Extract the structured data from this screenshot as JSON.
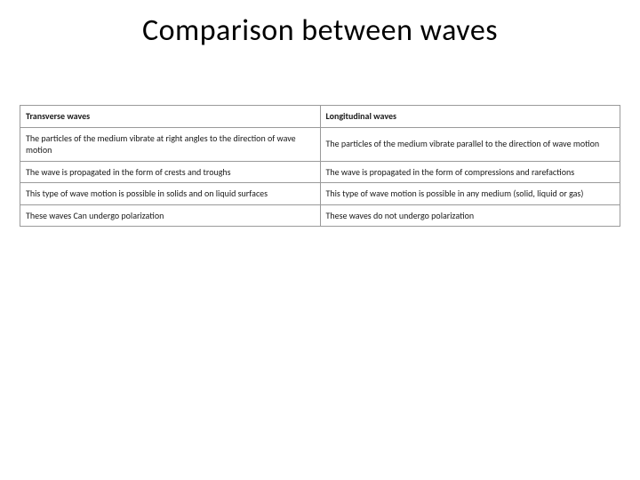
{
  "title": "Comparison between waves",
  "table": {
    "columns": [
      "Transverse waves",
      "Longitudinal waves"
    ],
    "rows": [
      [
        "The particles of the medium vibrate at right angles to the direction of wave motion",
        "The particles of the medium vibrate parallel to the direction of wave motion"
      ],
      [
        "The wave is propagated in the form of crests and troughs",
        "The wave is propagated in the form of compressions and rarefactions"
      ],
      [
        "This type of wave motion is possible in solids and on liquid surfaces",
        "This type of wave motion is possible in any medium (solid, liquid or gas)"
      ],
      [
        "These waves Can undergo polarization",
        "These waves do not undergo polarization"
      ]
    ],
    "border_color": "#9a9a9a",
    "background_color": "#ffffff",
    "title_fontsize": 34,
    "cell_fontsize": 10,
    "header_fontweight": 700
  }
}
